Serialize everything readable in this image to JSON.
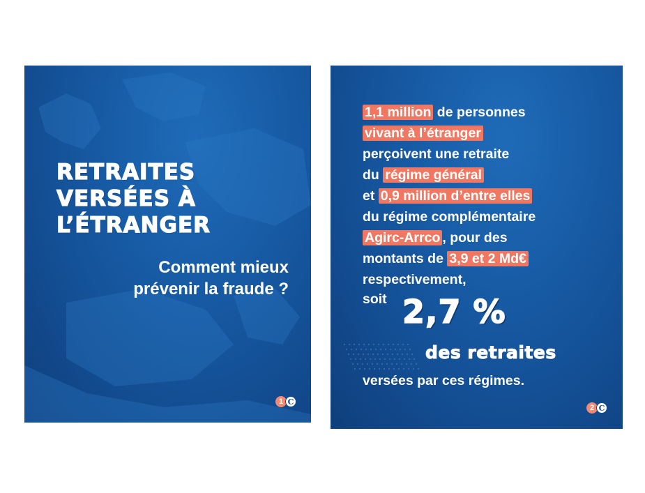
{
  "card1": {
    "title_lines": [
      "RETRAITES",
      "VERSÉES À",
      "L’ÉTRANGER"
    ],
    "subtitle_lines": [
      "Comment mieux",
      "prévenir la fraude ?"
    ],
    "page_number": "1",
    "logo_glyph": "C"
  },
  "card2": {
    "lines": [
      {
        "hl": "1,1 million",
        "rest": " de personnes"
      },
      {
        "hl": "vivant à l’étranger",
        "rest": ""
      },
      {
        "pre": "perçoivent une retraite"
      },
      {
        "pre": "du ",
        "hl": "régime général",
        "rest": ""
      },
      {
        "pre": "et ",
        "hl": "0,9 million d’entre elles",
        "rest": ""
      },
      {
        "pre": "du régime complémentaire"
      },
      {
        "hl": "Agirc-Arrco",
        "rest": ", pour des"
      },
      {
        "pre": "montants de ",
        "hl": "3,9 et 2 Md€",
        "rest": ""
      },
      {
        "pre": "respectivement,"
      }
    ],
    "soit": "soit",
    "big_value": "2,7 %",
    "big_caption": "des retraites",
    "tail": "versées par ces régimes.",
    "page_number": "2",
    "logo_glyph": "C"
  },
  "colors": {
    "background": "#124a8d",
    "highlight": "#f07862",
    "badge": "#f08a74"
  }
}
